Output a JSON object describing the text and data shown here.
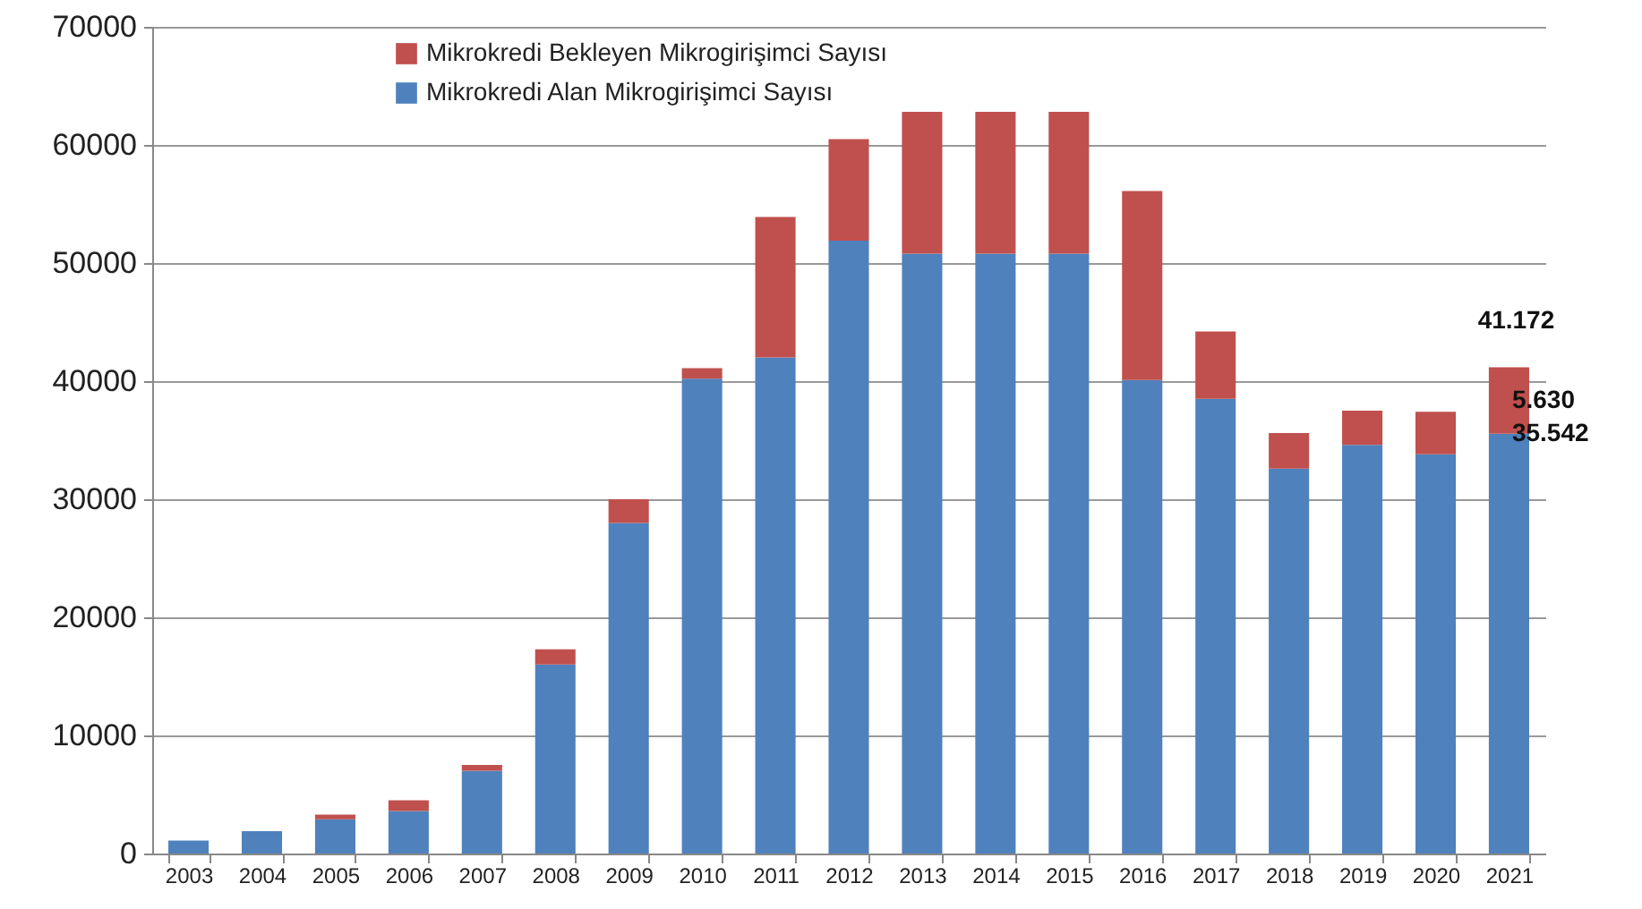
{
  "chart_data": {
    "type": "bar",
    "stacked": true,
    "categories": [
      "2003",
      "2004",
      "2005",
      "2006",
      "2007",
      "2008",
      "2009",
      "2010",
      "2011",
      "2012",
      "2013",
      "2014",
      "2015",
      "2016",
      "2017",
      "2018",
      "2019",
      "2020",
      "2021"
    ],
    "series": [
      {
        "name": "Mikrokredi Alan Mikrogirişimci Sayısı",
        "color": "#4f81bd",
        "values": [
          1100,
          1900,
          2900,
          3600,
          7000,
          16000,
          28000,
          40200,
          42000,
          51900,
          50800,
          50800,
          50800,
          40100,
          38500,
          32600,
          34600,
          33800,
          35542
        ],
        "value_labels": [
          null,
          null,
          null,
          null,
          null,
          null,
          null,
          null,
          null,
          null,
          null,
          null,
          null,
          null,
          null,
          null,
          null,
          null,
          "35.542"
        ]
      },
      {
        "name": "Mikrokredi Bekleyen Mikrogirişimci Sayısı",
        "color": "#c0504d",
        "values": [
          0,
          0,
          400,
          900,
          500,
          1300,
          2000,
          900,
          11900,
          8600,
          12000,
          12000,
          12000,
          16000,
          5700,
          3000,
          2900,
          3600,
          5630
        ],
        "value_labels": [
          null,
          null,
          null,
          null,
          null,
          null,
          null,
          null,
          null,
          null,
          null,
          null,
          null,
          null,
          null,
          null,
          null,
          null,
          "5.630"
        ]
      }
    ],
    "totals": [
      null,
      null,
      null,
      null,
      null,
      null,
      null,
      null,
      null,
      null,
      null,
      null,
      null,
      null,
      null,
      null,
      null,
      null,
      "41.172"
    ],
    "ylim": [
      0,
      70000
    ],
    "yticks": [
      0,
      10000,
      20000,
      30000,
      40000,
      50000,
      60000,
      70000
    ],
    "grid": "y",
    "legend": "top"
  }
}
